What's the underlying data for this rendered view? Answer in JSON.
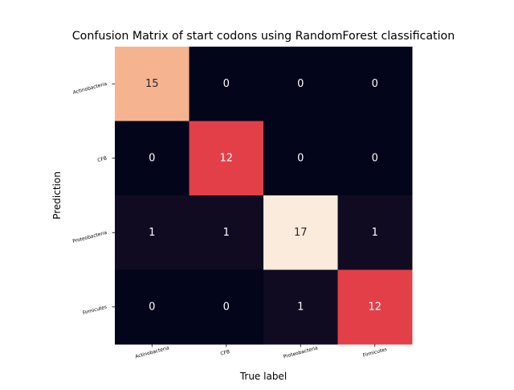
{
  "chart_data": {
    "type": "heatmap",
    "title": "Confusion Matrix of start codons using RandomForest classification",
    "xlabel": "True label",
    "ylabel": "Prediction",
    "x_categories": [
      "Actinobacteria",
      "CFB",
      "Proteobacteria",
      "Firmicutes"
    ],
    "y_categories": [
      "Actinobacteria",
      "CFB",
      "Proteobacteria",
      "Firmicutes"
    ],
    "values": [
      [
        15,
        0,
        0,
        0
      ],
      [
        0,
        12,
        0,
        0
      ],
      [
        1,
        1,
        17,
        1
      ],
      [
        0,
        0,
        1,
        12
      ]
    ],
    "colormap": "rocket",
    "colorbar": false,
    "grid": false,
    "annotations": true
  }
}
